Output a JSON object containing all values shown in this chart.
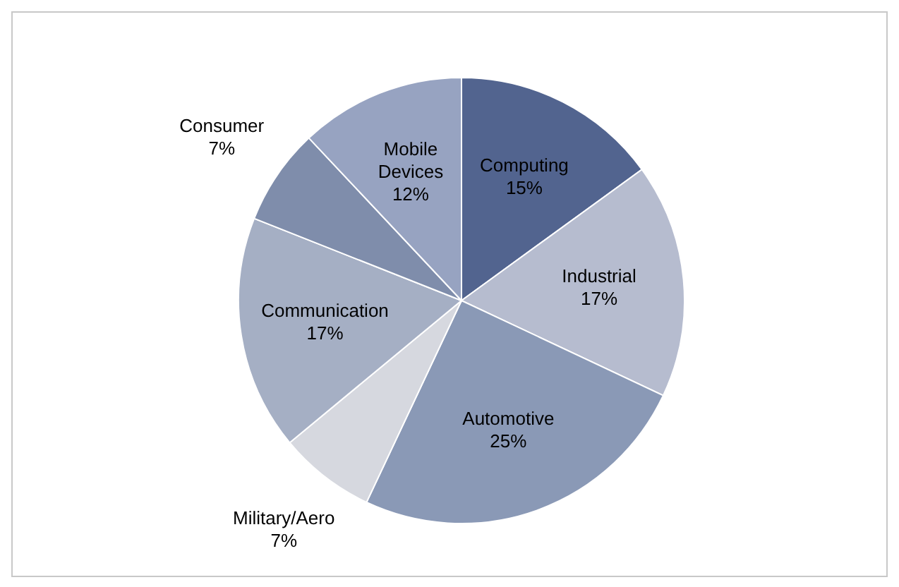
{
  "chart_data": {
    "type": "pie",
    "categories": [
      "Computing",
      "Industrial",
      "Automotive",
      "Military/Aero",
      "Communication",
      "Consumer",
      "Mobile Devices"
    ],
    "values": [
      15,
      17,
      25,
      7,
      17,
      7,
      12
    ],
    "colors": [
      "#52648f",
      "#b6bccf",
      "#8a99b6",
      "#d6d8df",
      "#a5afc4",
      "#7f8dab",
      "#97a3c1"
    ],
    "value_labels": [
      "15%",
      "17%",
      "25%",
      "7%",
      "17%",
      "7%",
      "12%"
    ]
  }
}
